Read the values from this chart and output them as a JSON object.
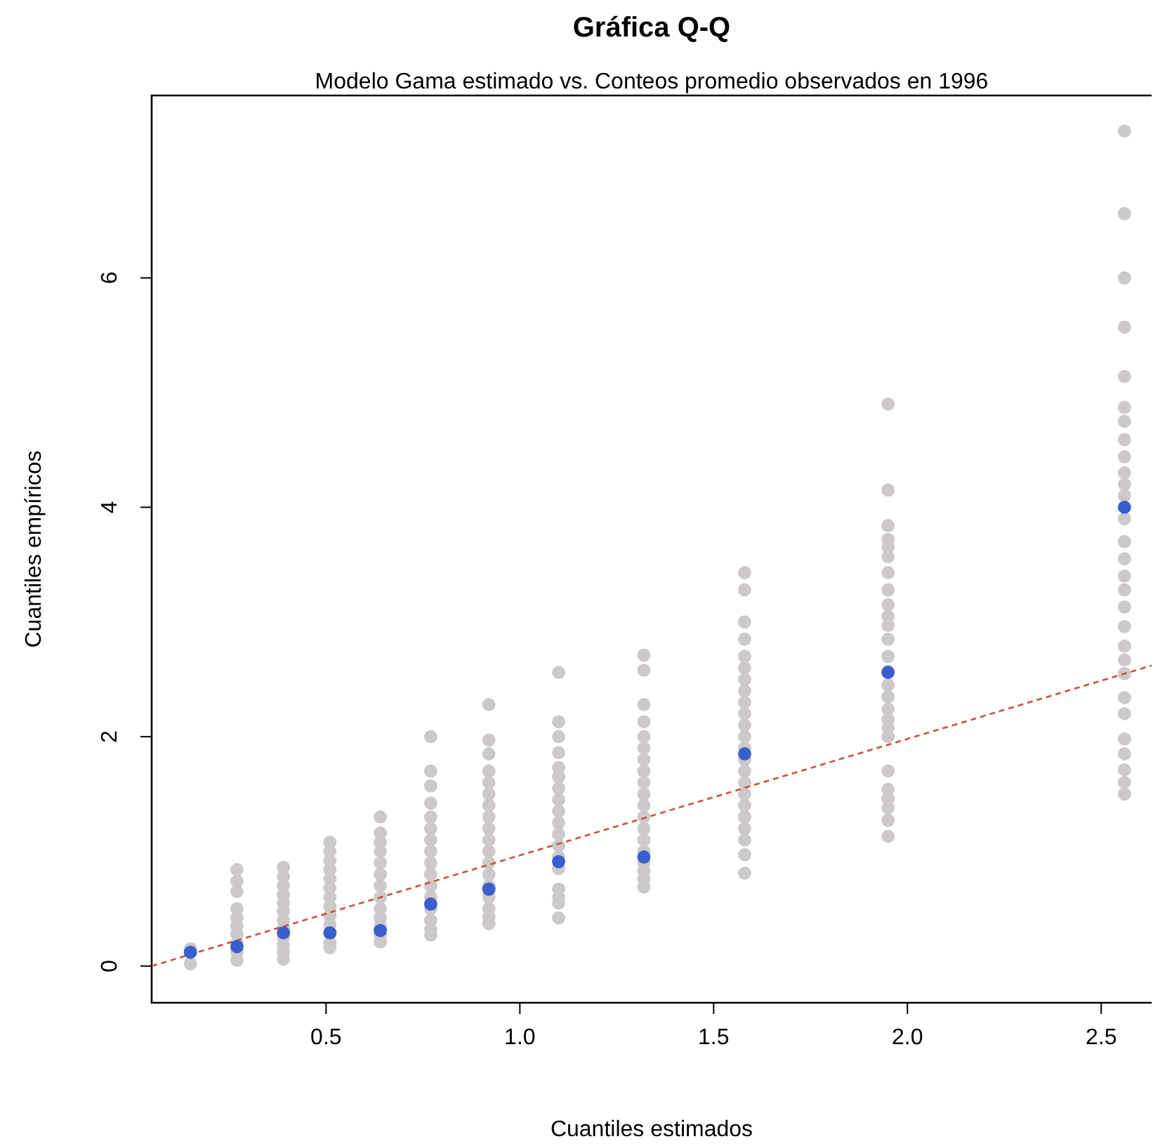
{
  "chart_data": {
    "type": "scatter",
    "title": "Gráfica Q-Q",
    "subtitle": "Modelo Gama estimado vs. Conteos promedio observados en 1996",
    "xlabel": "Cuantiles estimados",
    "ylabel": "Cuantiles empíricos",
    "xlim": [
      0.05,
      2.63
    ],
    "ylim": [
      -0.32,
      7.59
    ],
    "xticks": [
      0.5,
      {
        "value": 1,
        "label": "1.0"
      },
      1.5,
      {
        "value": 2,
        "label": "2.0"
      },
      2.5
    ],
    "yticks": [
      0,
      2,
      4,
      6
    ],
    "grid": false,
    "marker": "circle",
    "series": [
      {
        "color": "#cdc9c9",
        "x": [
          0.15,
          0.15,
          0.27,
          0.27,
          0.27,
          0.27,
          0.27,
          0.27,
          0.27,
          0.27,
          0.27,
          0.27,
          0.39,
          0.39,
          0.39,
          0.39,
          0.39,
          0.39,
          0.39,
          0.39,
          0.39,
          0.39,
          0.39,
          0.39,
          0.51,
          0.51,
          0.51,
          0.51,
          0.51,
          0.51,
          0.51,
          0.51,
          0.51,
          0.51,
          0.51,
          0.51,
          0.51,
          0.64,
          0.64,
          0.64,
          0.64,
          0.64,
          0.64,
          0.64,
          0.64,
          0.64,
          0.64,
          0.64,
          0.64,
          0.64,
          0.77,
          0.77,
          0.77,
          0.77,
          0.77,
          0.77,
          0.77,
          0.77,
          0.77,
          0.77,
          0.77,
          0.77,
          0.77,
          0.77,
          0.77,
          0.77,
          0.92,
          0.92,
          0.92,
          0.92,
          0.92,
          0.92,
          0.92,
          0.92,
          0.92,
          0.92,
          0.92,
          0.92,
          0.92,
          0.92,
          0.92,
          0.92,
          0.92,
          0.92,
          1.1,
          1.1,
          1.1,
          1.1,
          1.1,
          1.1,
          1.1,
          1.1,
          1.1,
          1.1,
          1.1,
          1.1,
          1.1,
          1.1,
          1.1,
          1.1,
          1.1,
          1.1,
          1.32,
          1.32,
          1.32,
          1.32,
          1.32,
          1.32,
          1.32,
          1.32,
          1.32,
          1.32,
          1.32,
          1.32,
          1.32,
          1.32,
          1.32,
          1.32,
          1.32,
          1.32,
          1.32,
          1.58,
          1.58,
          1.58,
          1.58,
          1.58,
          1.58,
          1.58,
          1.58,
          1.58,
          1.58,
          1.58,
          1.58,
          1.58,
          1.58,
          1.58,
          1.58,
          1.58,
          1.58,
          1.58,
          1.58,
          1.58,
          1.58,
          1.58,
          1.95,
          1.95,
          1.95,
          1.95,
          1.95,
          1.95,
          1.95,
          1.95,
          1.95,
          1.95,
          1.95,
          1.95,
          1.95,
          1.95,
          1.95,
          1.95,
          1.95,
          1.95,
          1.95,
          1.95,
          1.95,
          1.95,
          1.95,
          1.95,
          1.95,
          1.95,
          2.56,
          2.56,
          2.56,
          2.56,
          2.56,
          2.56,
          2.56,
          2.56,
          2.56,
          2.56,
          2.56,
          2.56,
          2.56,
          2.56,
          2.56,
          2.56,
          2.56,
          2.56,
          2.56,
          2.56,
          2.56,
          2.56,
          2.56,
          2.56,
          2.56,
          2.56,
          2.56,
          2.56,
          2.56
        ],
        "values": [
          0.02,
          0.15,
          0.84,
          0.74,
          0.65,
          0.5,
          0.42,
          0.35,
          0.28,
          0.2,
          0.12,
          0.05,
          0.86,
          0.78,
          0.7,
          0.62,
          0.55,
          0.48,
          0.4,
          0.33,
          0.25,
          0.18,
          0.12,
          0.06,
          1.08,
          1.0,
          0.92,
          0.84,
          0.76,
          0.68,
          0.6,
          0.52,
          0.44,
          0.36,
          0.28,
          0.2,
          0.16,
          1.3,
          1.16,
          1.08,
          1.0,
          0.9,
          0.8,
          0.7,
          0.6,
          0.5,
          0.42,
          0.35,
          0.27,
          0.21,
          2.0,
          1.7,
          1.57,
          1.42,
          1.3,
          1.2,
          1.1,
          1.0,
          0.9,
          0.8,
          0.7,
          0.6,
          0.5,
          0.4,
          0.32,
          0.27,
          2.28,
          1.97,
          1.85,
          1.7,
          1.6,
          1.5,
          1.4,
          1.3,
          1.2,
          1.1,
          1.0,
          0.9,
          0.8,
          0.7,
          0.6,
          0.5,
          0.43,
          0.37,
          2.56,
          2.13,
          2.0,
          1.86,
          1.73,
          1.65,
          1.55,
          1.45,
          1.35,
          1.25,
          1.15,
          1.05,
          0.95,
          0.85,
          0.67,
          0.6,
          0.55,
          0.42,
          2.71,
          2.58,
          2.28,
          2.13,
          2.0,
          1.9,
          1.8,
          1.7,
          1.6,
          1.5,
          1.4,
          1.3,
          1.2,
          1.1,
          1.0,
          0.9,
          0.83,
          0.76,
          0.69,
          3.43,
          3.28,
          3.0,
          2.85,
          2.7,
          2.6,
          2.5,
          2.4,
          2.3,
          2.2,
          2.1,
          2.0,
          1.9,
          1.8,
          1.7,
          1.6,
          1.5,
          1.4,
          1.3,
          1.2,
          1.1,
          0.97,
          0.81,
          4.9,
          4.15,
          3.84,
          3.72,
          3.65,
          3.57,
          3.43,
          3.28,
          3.15,
          3.05,
          2.97,
          2.85,
          2.7,
          2.57,
          2.45,
          2.35,
          2.24,
          2.15,
          2.08,
          2.0,
          1.7,
          1.54,
          1.46,
          1.38,
          1.27,
          1.13,
          7.28,
          6.56,
          6.0,
          5.57,
          5.14,
          4.87,
          4.75,
          4.59,
          4.44,
          4.3,
          4.2,
          4.1,
          3.9,
          3.7,
          3.55,
          3.4,
          3.28,
          3.13,
          2.96,
          2.79,
          2.67,
          2.55,
          2.34,
          2.2,
          1.98,
          1.85,
          1.71,
          1.6,
          1.5
        ]
      },
      {
        "type": "line",
        "color": "#cd4f39",
        "line_style": "dashed",
        "marker": "none",
        "x": [
          0.05,
          2.63
        ],
        "values": [
          0.0,
          2.62
        ]
      },
      {
        "color": "#3a5fcd",
        "x": [
          0.15,
          0.27,
          0.39,
          0.51,
          0.64,
          0.77,
          0.92,
          1.1,
          1.32,
          1.58,
          1.95,
          2.56
        ],
        "values": [
          0.12,
          0.17,
          0.29,
          0.29,
          0.31,
          0.54,
          0.67,
          0.91,
          0.95,
          1.85,
          2.56,
          4.0
        ]
      }
    ]
  }
}
